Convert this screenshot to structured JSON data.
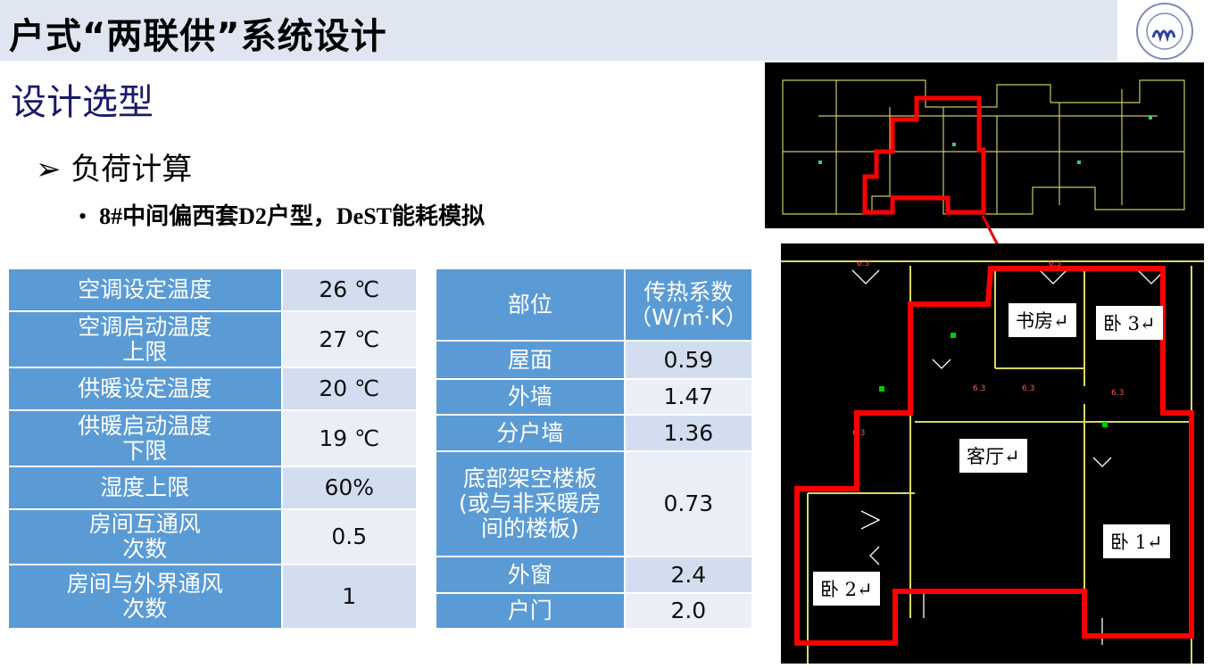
{
  "header": {
    "title": "户式“两联供”系统设计",
    "logo": "TONGJI UNIVERSITY 1907"
  },
  "section": "设计选型",
  "subsection": {
    "marker": "➢",
    "text": "负荷计算"
  },
  "bullet": {
    "marker": "•",
    "text": "8#中间偏西套D2户型，DeST能耗模拟"
  },
  "table1": {
    "rows": [
      {
        "label": "空调设定温度",
        "value": "26 ℃"
      },
      {
        "label": "空调启动温度\n上限",
        "value": "27 ℃"
      },
      {
        "label": "供暖设定温度",
        "value": "20 ℃"
      },
      {
        "label": "供暖启动温度\n下限",
        "value": "19 ℃"
      },
      {
        "label": "湿度上限",
        "value": "60%"
      },
      {
        "label": "房间互通风\n次数",
        "value": "0.5"
      },
      {
        "label": "房间与外界通风\n次数",
        "value": "1"
      }
    ]
  },
  "table2": {
    "header": [
      "部位",
      "传热系数\n（W/㎡·K）"
    ],
    "rows": [
      {
        "label": "屋面",
        "value": "0.59"
      },
      {
        "label": "外墙",
        "value": "1.47"
      },
      {
        "label": "分户墙",
        "value": "1.36"
      },
      {
        "label": "底部架空楼板\n(或与非采暖房\n间的楼板)",
        "value": "0.73"
      },
      {
        "label": "外窗",
        "value": "2.4"
      },
      {
        "label": "户门",
        "value": "2.0"
      }
    ]
  },
  "plan": {
    "rooms": [
      "书房↵",
      "卧 3↵",
      "客厅↵",
      "卧 1↵",
      "卧 2↵"
    ]
  },
  "colors": {
    "table_header": "#5b9bd5",
    "highlight": "#ff0000",
    "plan_bg": "#000000"
  }
}
